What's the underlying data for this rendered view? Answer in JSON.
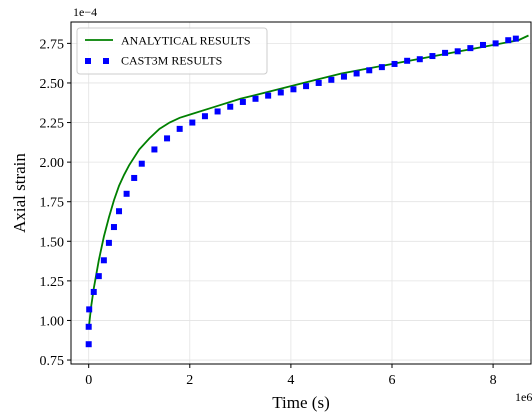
{
  "chart_data": {
    "type": "line",
    "title": "",
    "xlabel": "Time (s)",
    "ylabel": "Axial strain",
    "x_offset_label": "1e6",
    "y_offset_label": "1e−4",
    "xlim": [
      -0.35,
      8.75
    ],
    "ylim": [
      0.725,
      2.885
    ],
    "xticks": [
      0,
      2,
      4,
      6,
      8
    ],
    "yticks": [
      0.75,
      1.0,
      1.25,
      1.5,
      1.75,
      2.0,
      2.25,
      2.5,
      2.75
    ],
    "ytick_labels": [
      "0.75",
      "1.00",
      "1.25",
      "1.50",
      "1.75",
      "2.00",
      "2.25",
      "2.50",
      "2.75"
    ],
    "xtick_labels": [
      "0",
      "2",
      "4",
      "6",
      "8"
    ],
    "grid": true,
    "legend_position": "top-left",
    "series": [
      {
        "name": "ANALYTICAL RESULTS",
        "style": "line",
        "color": "#008000",
        "x": [
          0,
          0.05,
          0.1,
          0.2,
          0.3,
          0.4,
          0.5,
          0.6,
          0.7,
          0.8,
          1.0,
          1.2,
          1.4,
          1.6,
          1.8,
          2.0,
          2.5,
          3.0,
          3.5,
          4.0,
          4.5,
          5.0,
          5.5,
          6.0,
          6.5,
          7.0,
          7.5,
          8.0,
          8.5,
          8.7
        ],
        "y": [
          0.95,
          1.09,
          1.2,
          1.38,
          1.53,
          1.65,
          1.76,
          1.85,
          1.92,
          1.98,
          2.08,
          2.15,
          2.21,
          2.25,
          2.28,
          2.3,
          2.35,
          2.4,
          2.44,
          2.48,
          2.52,
          2.56,
          2.59,
          2.62,
          2.65,
          2.68,
          2.71,
          2.74,
          2.77,
          2.8
        ]
      },
      {
        "name": "CAST3M RESULTS",
        "style": "markers",
        "color": "#0000ff",
        "x": [
          0,
          0.0,
          0.01,
          0.1,
          0.2,
          0.3,
          0.4,
          0.5,
          0.6,
          0.75,
          0.9,
          1.05,
          1.3,
          1.55,
          1.8,
          2.05,
          2.3,
          2.55,
          2.8,
          3.05,
          3.3,
          3.55,
          3.8,
          4.05,
          4.3,
          4.55,
          4.8,
          5.05,
          5.3,
          5.55,
          5.8,
          6.05,
          6.3,
          6.55,
          6.8,
          7.05,
          7.3,
          7.55,
          7.8,
          8.05,
          8.3,
          8.45
        ],
        "y": [
          0.85,
          0.96,
          1.07,
          1.18,
          1.28,
          1.38,
          1.49,
          1.59,
          1.69,
          1.8,
          1.9,
          1.99,
          2.08,
          2.15,
          2.21,
          2.25,
          2.29,
          2.32,
          2.35,
          2.38,
          2.4,
          2.42,
          2.44,
          2.46,
          2.48,
          2.5,
          2.52,
          2.54,
          2.56,
          2.58,
          2.6,
          2.62,
          2.64,
          2.65,
          2.67,
          2.69,
          2.7,
          2.72,
          2.74,
          2.75,
          2.77,
          2.78
        ]
      }
    ]
  }
}
